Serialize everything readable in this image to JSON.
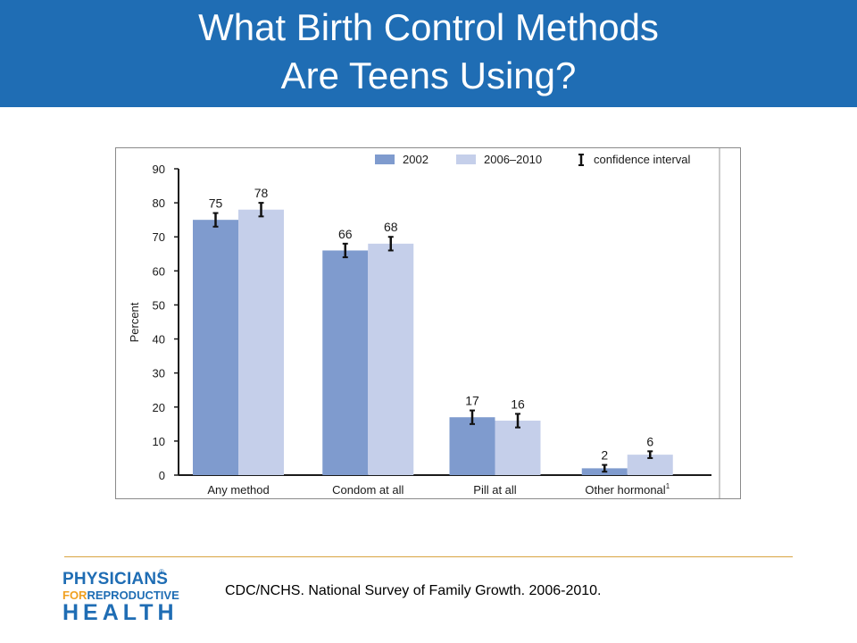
{
  "title": {
    "line1": "What Birth Control Methods",
    "line2": "Are Teens Using?"
  },
  "citation": "CDC/NCHS.  National Survey of Family Growth.  2006-2010.",
  "logo": {
    "line1": "PHYSICIANS",
    "line2_for": "FOR",
    "line2_rest": "REPRODUCTIVE",
    "line3": "HEALTH",
    "registered": "®"
  },
  "colors": {
    "banner": "#1f6db4",
    "series_2002": "#7f9bce",
    "series_2006": "#c5cfea",
    "divider": "#d9a441"
  },
  "chart_data": {
    "type": "bar",
    "ylabel": "Percent",
    "ylim": [
      0,
      90
    ],
    "yticks": [
      0,
      10,
      20,
      30,
      40,
      50,
      60,
      70,
      80,
      90
    ],
    "categories": [
      "Any method",
      "Condom at all",
      "Pill at all",
      "Other hormonal"
    ],
    "category_superscripts": [
      "",
      "",
      "",
      "1"
    ],
    "series": [
      {
        "name": "2002",
        "color": "#7f9bce",
        "values": [
          75,
          66,
          17,
          2
        ]
      },
      {
        "name": "2006–2010",
        "color": "#c5cfea",
        "values": [
          78,
          68,
          16,
          6
        ]
      }
    ],
    "confidence_interval_label": "confidence interval",
    "error_bars": [
      [
        [
          73,
          77
        ],
        [
          64,
          68
        ],
        [
          15,
          19
        ],
        [
          1,
          3
        ]
      ],
      [
        [
          76,
          80
        ],
        [
          66,
          70
        ],
        [
          14,
          18
        ],
        [
          5,
          7
        ]
      ]
    ],
    "legend_position": "top-right",
    "grid": false
  }
}
